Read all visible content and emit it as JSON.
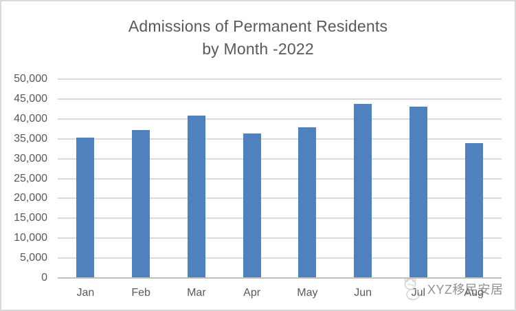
{
  "title": {
    "line1": "Admissions of Permanent Residents",
    "line2": "by Month -2022",
    "color": "#595959"
  },
  "watermark": {
    "text": "XYZ移民安居",
    "icon": "mascot-logo-icon"
  },
  "chart_data": {
    "type": "bar",
    "title": "Admissions of Permanent Residents by Month -2022",
    "categories": [
      "Jan",
      "Feb",
      "Mar",
      "Apr",
      "May",
      "Jun",
      "Jul",
      "Aug"
    ],
    "values": [
      35300,
      37200,
      40800,
      36400,
      37900,
      43800,
      43100,
      33900
    ],
    "xlabel": "",
    "ylabel": "",
    "ylim": [
      0,
      50000
    ],
    "ytick_step": 5000,
    "y_tick_labels": [
      "0",
      "5,000",
      "10,000",
      "15,000",
      "20,000",
      "25,000",
      "30,000",
      "35,000",
      "40,000",
      "45,000",
      "50,000"
    ],
    "grid": true,
    "legend": false,
    "bar_color": "#4E81BD",
    "gridline_color": "#DBDBDB",
    "axis_line_color": "#BFBFBF",
    "label_color": "#595959"
  }
}
